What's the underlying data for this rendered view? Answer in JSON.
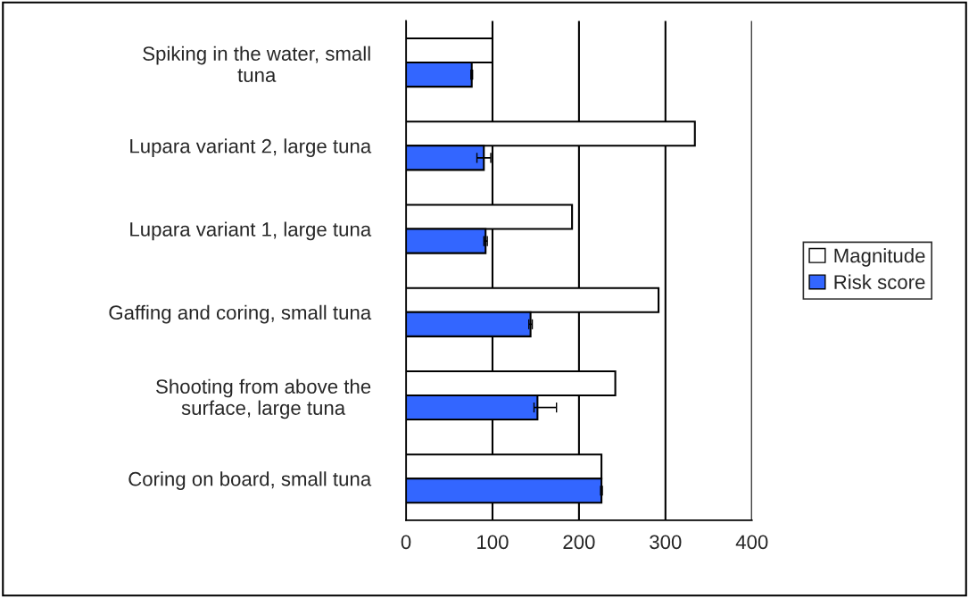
{
  "chart_data": {
    "type": "bar",
    "orientation": "horizontal",
    "categories": [
      "Spiking in the water, small\ntuna",
      "Lupara variant 2, large tuna",
      "Lupara variant 1, large tuna",
      "Gaffing and coring, small tuna",
      "Shooting from above the\nsurface, large tuna",
      "Coring on board, small tuna"
    ],
    "series": [
      {
        "name": "Magnitude",
        "color": "#ffffff",
        "values": [
          100,
          334,
          192,
          292,
          242,
          226
        ]
      },
      {
        "name": "Risk score",
        "color": "#3366ff",
        "values": [
          76,
          90,
          92,
          144,
          152,
          226
        ],
        "errors": [
          1,
          8,
          2,
          2,
          [
            148,
            174
          ],
          1
        ]
      }
    ],
    "xlim": [
      0,
      400
    ],
    "xticks": [
      0,
      100,
      200,
      300,
      400
    ],
    "grid": "x",
    "legend": "right"
  }
}
